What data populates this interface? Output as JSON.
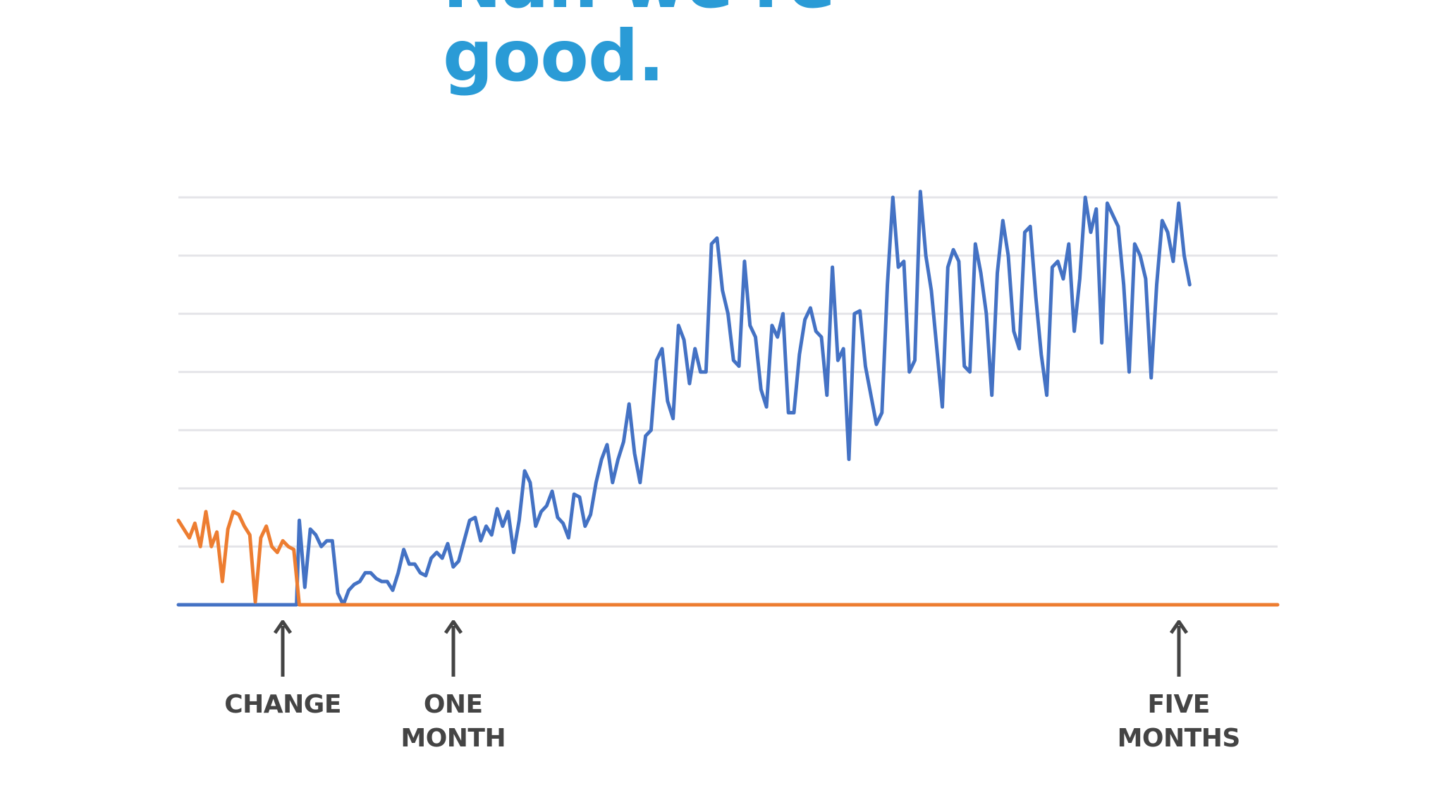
{
  "title": {
    "lines": [
      "Nah we're",
      "good."
    ],
    "color": "#2a9bd6"
  },
  "chart_data": {
    "type": "line",
    "title": "",
    "xlabel": "",
    "ylabel": "",
    "grid": true,
    "axes_labels_shown": false,
    "xlim": [
      0,
      200
    ],
    "ylim": [
      0,
      7
    ],
    "annotation_color": "#444444",
    "annotations": [
      {
        "label": "CHANGE",
        "x": 19
      },
      {
        "label": "ONE\nMONTH",
        "x": 50
      },
      {
        "label": "FIVE\nMONTHS",
        "x": 182
      }
    ],
    "series": [
      {
        "color": "#4472c4",
        "points": [
          [
            0,
            0
          ],
          [
            21.5,
            0
          ],
          [
            22.0,
            1.45
          ],
          [
            23,
            0.3
          ],
          [
            24,
            1.3
          ],
          [
            25,
            1.2
          ],
          [
            26,
            1.0
          ],
          [
            27,
            1.1
          ],
          [
            28,
            1.1
          ],
          [
            29,
            0.2
          ],
          [
            30,
            0.0
          ],
          [
            31,
            0.25
          ],
          [
            32,
            0.35
          ],
          [
            33,
            0.4
          ],
          [
            34,
            0.55
          ],
          [
            35,
            0.55
          ],
          [
            36,
            0.45
          ],
          [
            37,
            0.4
          ],
          [
            38,
            0.4
          ],
          [
            39,
            0.25
          ],
          [
            40,
            0.55
          ],
          [
            41,
            0.95
          ],
          [
            42,
            0.7
          ],
          [
            43,
            0.7
          ],
          [
            44,
            0.55
          ],
          [
            45,
            0.5
          ],
          [
            46,
            0.8
          ],
          [
            47,
            0.9
          ],
          [
            48,
            0.8
          ],
          [
            49,
            1.05
          ],
          [
            50,
            0.65
          ],
          [
            51,
            0.75
          ],
          [
            52,
            1.1
          ],
          [
            53,
            1.45
          ],
          [
            54,
            1.5
          ],
          [
            55,
            1.1
          ],
          [
            56,
            1.35
          ],
          [
            57,
            1.2
          ],
          [
            58,
            1.65
          ],
          [
            59,
            1.35
          ],
          [
            60,
            1.6
          ],
          [
            61,
            0.9
          ],
          [
            62,
            1.45
          ],
          [
            63,
            2.3
          ],
          [
            64,
            2.1
          ],
          [
            65,
            1.35
          ],
          [
            66,
            1.6
          ],
          [
            67,
            1.7
          ],
          [
            68,
            1.95
          ],
          [
            69,
            1.5
          ],
          [
            70,
            1.4
          ],
          [
            71,
            1.15
          ],
          [
            72,
            1.9
          ],
          [
            73,
            1.85
          ],
          [
            74,
            1.35
          ],
          [
            75,
            1.55
          ],
          [
            76,
            2.1
          ],
          [
            77,
            2.5
          ],
          [
            78,
            2.75
          ],
          [
            79,
            2.1
          ],
          [
            80,
            2.5
          ],
          [
            81,
            2.8
          ],
          [
            82,
            3.45
          ],
          [
            83,
            2.6
          ],
          [
            84,
            2.1
          ],
          [
            85,
            2.9
          ],
          [
            86,
            3.0
          ],
          [
            87,
            4.2
          ],
          [
            88,
            4.4
          ],
          [
            89,
            3.5
          ],
          [
            90,
            3.2
          ],
          [
            91,
            4.8
          ],
          [
            92,
            4.55
          ],
          [
            93,
            3.8
          ],
          [
            94,
            4.4
          ],
          [
            95,
            4.0
          ],
          [
            96,
            4.0
          ],
          [
            97,
            6.2
          ],
          [
            98,
            6.3
          ],
          [
            99,
            5.4
          ],
          [
            100,
            5.0
          ],
          [
            101,
            4.2
          ],
          [
            102,
            4.1
          ],
          [
            103,
            5.9
          ],
          [
            104,
            4.8
          ],
          [
            105,
            4.6
          ],
          [
            106,
            3.7
          ],
          [
            107,
            3.4
          ],
          [
            108,
            4.8
          ],
          [
            109,
            4.6
          ],
          [
            110,
            5.0
          ],
          [
            111,
            3.3
          ],
          [
            112,
            3.3
          ],
          [
            113,
            4.3
          ],
          [
            114,
            4.9
          ],
          [
            115,
            5.1
          ],
          [
            116,
            4.7
          ],
          [
            117,
            4.6
          ],
          [
            118,
            3.6
          ],
          [
            119,
            5.8
          ],
          [
            120,
            4.2
          ],
          [
            121,
            4.4
          ],
          [
            122,
            2.5
          ],
          [
            123,
            5.0
          ],
          [
            124,
            5.05
          ],
          [
            125,
            4.1
          ],
          [
            126,
            3.6
          ],
          [
            127,
            3.1
          ],
          [
            128,
            3.3
          ],
          [
            129,
            5.5
          ],
          [
            130,
            7.0
          ],
          [
            131,
            5.8
          ],
          [
            132,
            5.9
          ],
          [
            133,
            4.0
          ],
          [
            134,
            4.2
          ],
          [
            135,
            7.1
          ],
          [
            136,
            6.0
          ],
          [
            137,
            5.4
          ],
          [
            138,
            4.4
          ],
          [
            139,
            3.4
          ],
          [
            140,
            5.8
          ],
          [
            141,
            6.1
          ],
          [
            142,
            5.9
          ],
          [
            143,
            4.1
          ],
          [
            144,
            4.0
          ],
          [
            145,
            6.2
          ],
          [
            146,
            5.7
          ],
          [
            147,
            5.0
          ],
          [
            148,
            3.6
          ],
          [
            149,
            5.7
          ],
          [
            150,
            6.6
          ],
          [
            151,
            6.0
          ],
          [
            152,
            4.7
          ],
          [
            153,
            4.4
          ],
          [
            154,
            6.4
          ],
          [
            155,
            6.5
          ],
          [
            156,
            5.3
          ],
          [
            157,
            4.3
          ],
          [
            158,
            3.6
          ],
          [
            159,
            5.8
          ],
          [
            160,
            5.9
          ],
          [
            161,
            5.6
          ],
          [
            162,
            6.2
          ],
          [
            163,
            4.7
          ],
          [
            164,
            5.6
          ],
          [
            165,
            7.0
          ],
          [
            166,
            6.4
          ],
          [
            167,
            6.8
          ],
          [
            168,
            4.5
          ],
          [
            169,
            6.9
          ],
          [
            170,
            6.7
          ],
          [
            171,
            6.5
          ],
          [
            172,
            5.5
          ],
          [
            173,
            4.0
          ],
          [
            174,
            6.2
          ],
          [
            175,
            6.0
          ],
          [
            176,
            5.6
          ],
          [
            177,
            3.9
          ],
          [
            178,
            5.5
          ],
          [
            179,
            6.6
          ],
          [
            180,
            6.4
          ],
          [
            181,
            5.9
          ],
          [
            182,
            6.9
          ],
          [
            183,
            6.0
          ],
          [
            184,
            5.5
          ]
        ]
      },
      {
        "color": "#ed7d31",
        "points": [
          [
            0,
            1.45
          ],
          [
            1,
            1.3
          ],
          [
            2,
            1.15
          ],
          [
            3,
            1.4
          ],
          [
            4,
            1.0
          ],
          [
            5,
            1.6
          ],
          [
            6,
            1.0
          ],
          [
            7,
            1.25
          ],
          [
            8,
            0.4
          ],
          [
            9,
            1.3
          ],
          [
            10,
            1.6
          ],
          [
            11,
            1.55
          ],
          [
            12,
            1.35
          ],
          [
            13,
            1.2
          ],
          [
            14,
            0.05
          ],
          [
            15,
            1.15
          ],
          [
            16,
            1.35
          ],
          [
            17,
            1.0
          ],
          [
            18,
            0.9
          ],
          [
            19,
            1.1
          ],
          [
            20,
            1.0
          ],
          [
            21,
            0.95
          ],
          [
            22,
            0.0
          ],
          [
            200,
            0.0
          ]
        ]
      }
    ]
  }
}
